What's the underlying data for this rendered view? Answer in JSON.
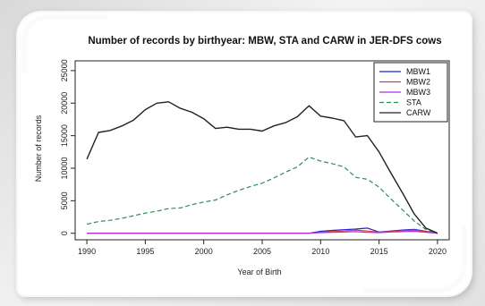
{
  "chart_data": {
    "type": "line",
    "title": "Number of records by birthyear: MBW, STA and CARW in JER-DFS cows",
    "xlabel": "Year of Birth",
    "ylabel": "Number of records",
    "xlim": [
      1989,
      2021
    ],
    "ylim": [
      -1000,
      26500
    ],
    "xticks": [
      1990,
      1995,
      2000,
      2005,
      2010,
      2015,
      2020
    ],
    "yticks": [
      0,
      5000,
      10000,
      15000,
      20000,
      25000
    ],
    "legend_position": "top-right",
    "x": [
      1990,
      1991,
      1992,
      1993,
      1994,
      1995,
      1996,
      1997,
      1998,
      1999,
      2000,
      2001,
      2002,
      2003,
      2004,
      2005,
      2006,
      2007,
      2008,
      2009,
      2010,
      2011,
      2012,
      2013,
      2014,
      2015,
      2016,
      2017,
      2018,
      2019,
      2020
    ],
    "series": [
      {
        "name": "MBW1",
        "color": "#2222dd",
        "dash": "solid",
        "values": [
          0,
          0,
          0,
          0,
          0,
          0,
          0,
          0,
          0,
          0,
          0,
          0,
          0,
          0,
          0,
          0,
          0,
          0,
          0,
          0,
          300,
          450,
          550,
          650,
          800,
          200,
          350,
          500,
          600,
          300,
          0
        ]
      },
      {
        "name": "MBW2",
        "color": "#ee3333",
        "dash": "solid",
        "values": [
          0,
          0,
          0,
          0,
          0,
          0,
          0,
          0,
          0,
          0,
          0,
          0,
          0,
          0,
          0,
          0,
          0,
          0,
          0,
          0,
          150,
          250,
          350,
          500,
          350,
          150,
          250,
          400,
          500,
          250,
          0
        ]
      },
      {
        "name": "MBW3",
        "color": "#aa33dd",
        "dash": "solid",
        "values": [
          0,
          0,
          0,
          0,
          0,
          0,
          0,
          0,
          0,
          0,
          0,
          0,
          0,
          0,
          0,
          0,
          0,
          0,
          0,
          0,
          100,
          150,
          200,
          250,
          150,
          100,
          200,
          250,
          300,
          150,
          0
        ]
      },
      {
        "name": "STA",
        "color": "#2e8b57",
        "dash": "dashed",
        "values": [
          1400,
          1800,
          2000,
          2300,
          2700,
          3100,
          3400,
          3800,
          3900,
          4400,
          4800,
          5100,
          5900,
          6600,
          7200,
          7700,
          8500,
          9400,
          10200,
          11700,
          11100,
          10700,
          10200,
          8600,
          8300,
          7100,
          5300,
          3600,
          1900,
          600,
          0
        ]
      },
      {
        "name": "CARW",
        "color": "#222222",
        "dash": "solid",
        "values": [
          11400,
          15500,
          15800,
          16500,
          17400,
          19000,
          20000,
          20200,
          19200,
          18600,
          17600,
          16100,
          16300,
          16000,
          16000,
          15700,
          16500,
          17000,
          17900,
          19600,
          18000,
          17700,
          17300,
          14800,
          15000,
          12500,
          9300,
          6200,
          3000,
          800,
          0
        ]
      }
    ]
  }
}
